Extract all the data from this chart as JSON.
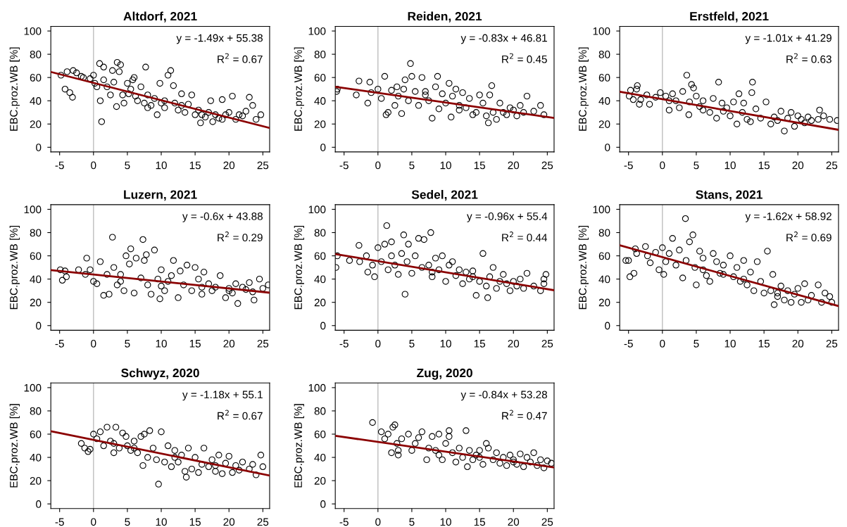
{
  "chart_data": [
    {
      "type": "scatter",
      "title": "Altdorf, 2021",
      "ylabel": "EBC.proz.WB [%]",
      "xlim": [
        -6.3,
        26
      ],
      "ylim": [
        -4,
        104
      ],
      "xticks": [
        -5,
        0,
        5,
        10,
        15,
        20,
        25
      ],
      "yticks": [
        0,
        20,
        40,
        60,
        80,
        100
      ],
      "grid": false,
      "annotations": [
        "y = -1.49x + 55.38",
        "R$^{2}$ = 0.67"
      ],
      "ref_lines": [
        {
          "axis": "x",
          "value": 0,
          "color": "#bebebe"
        }
      ],
      "series": [
        {
          "color": "#000000",
          "marker": "circle",
          "x": [
            -4.8,
            -4.2,
            -3.9,
            -3.5,
            -3.1,
            -3,
            -2.5,
            -1.8,
            -1.5,
            -0.5,
            0,
            0.2,
            0.5,
            0.9,
            1,
            1.2,
            1.5,
            1.5,
            2,
            2.5,
            2.8,
            3,
            3.4,
            3.5,
            3.8,
            4,
            4.3,
            4.5,
            5,
            5.5,
            5.8,
            6.2,
            6.5,
            7,
            7.5,
            7.7,
            8,
            8.5,
            9,
            9.4,
            9.8,
            10,
            10.5,
            11,
            11.4,
            11.8,
            12,
            12.5,
            13,
            13.5,
            14,
            14.5,
            15,
            15.5,
            15.8,
            16.5,
            17,
            17.3,
            17.6,
            18,
            18.5,
            19,
            19.5,
            20,
            20.5,
            21,
            21.5,
            22,
            23,
            23.5,
            24,
            24.7,
            22.5,
            6,
            5.2,
            8,
            10.5,
            16,
            19,
            13
          ],
          "values": [
            62,
            50,
            65,
            47,
            43,
            66,
            64,
            61,
            60,
            59,
            62,
            55,
            52,
            72,
            40,
            22,
            69,
            58,
            52,
            45,
            66,
            56,
            35,
            73,
            65,
            71,
            45,
            38,
            55,
            50,
            58,
            44,
            40,
            52,
            38,
            69,
            45,
            36,
            42,
            28,
            55,
            38,
            34,
            62,
            66,
            53,
            38,
            32,
            46,
            30,
            37,
            45,
            28,
            32,
            21,
            26,
            30,
            40,
            22,
            28,
            25,
            41,
            28,
            30,
            44,
            24,
            28,
            27,
            43,
            36,
            24,
            28,
            31,
            60,
            46,
            34,
            40,
            28,
            24,
            36
          ]
        },
        {
          "type": "line",
          "color": "#8b0000",
          "x": [
            -6.3,
            26
          ],
          "values": [
            64.8,
            16.6
          ]
        }
      ]
    },
    {
      "type": "scatter",
      "title": "Reiden, 2021",
      "ylabel": "EBC.proz.WB [%]",
      "xlim": [
        -6.3,
        26
      ],
      "ylim": [
        -4,
        104
      ],
      "xticks": [
        -5,
        0,
        5,
        10,
        15,
        20,
        25
      ],
      "yticks": [
        0,
        20,
        40,
        60,
        80,
        100
      ],
      "grid": false,
      "annotations": [
        "y = -0.83x + 46.81",
        "R$^{2}$ = 0.45"
      ],
      "ref_lines": [
        {
          "axis": "x",
          "value": 0,
          "color": "#bebebe"
        }
      ],
      "series": [
        {
          "color": "#000000",
          "marker": "circle",
          "x": [
            -6.1,
            -6,
            -3.2,
            -2.8,
            -1.5,
            -1.2,
            -1,
            0,
            0.5,
            1,
            1.2,
            1.5,
            2,
            2.5,
            3,
            3.5,
            3.8,
            4,
            4.5,
            4.8,
            5,
            5.5,
            6,
            6.5,
            7,
            7.5,
            8,
            8.5,
            8.8,
            9,
            9.5,
            10,
            10.5,
            10.8,
            11,
            11.5,
            12,
            12.5,
            13,
            13.5,
            14,
            14.5,
            15,
            15.5,
            16,
            16.3,
            16.5,
            16.8,
            17,
            17.5,
            18,
            18.5,
            19,
            19.5,
            20,
            20.5,
            21,
            21.5,
            22,
            23,
            24,
            24.5,
            2.8,
            7,
            12
          ],
          "values": [
            48,
            50,
            45,
            57,
            38,
            56,
            47,
            50,
            42,
            61,
            28,
            30,
            49,
            36,
            44,
            29,
            50,
            58,
            40,
            72,
            61,
            48,
            36,
            60,
            45,
            40,
            25,
            52,
            61,
            33,
            46,
            38,
            55,
            26,
            44,
            50,
            32,
            47,
            34,
            42,
            28,
            30,
            45,
            38,
            27,
            21,
            45,
            53,
            30,
            24,
            38,
            30,
            28,
            34,
            32,
            27,
            36,
            30,
            44,
            31,
            36,
            28,
            52,
            48,
            36
          ]
        },
        {
          "type": "line",
          "color": "#8b0000",
          "x": [
            -6.3,
            26
          ],
          "values": [
            52,
            25.2
          ]
        }
      ]
    },
    {
      "type": "scatter",
      "title": "Erstfeld, 2021",
      "ylabel": "EBC.proz.WB [%]",
      "xlim": [
        -6.3,
        26
      ],
      "ylim": [
        -4,
        104
      ],
      "xticks": [
        -5,
        0,
        5,
        10,
        15,
        20,
        25
      ],
      "yticks": [
        0,
        20,
        40,
        60,
        80,
        100
      ],
      "grid": false,
      "annotations": [
        "y = -1.01x + 41.29",
        "R$^{2}$ = 0.63"
      ],
      "ref_lines": [
        {
          "axis": "x",
          "value": 0,
          "color": "#bebebe"
        }
      ],
      "series": [
        {
          "color": "#000000",
          "marker": "circle",
          "x": [
            -4.9,
            -4.7,
            -4.3,
            -3.8,
            -3.7,
            -3.4,
            -3.2,
            -2.3,
            -1.9,
            -1,
            -0.3,
            0.5,
            1,
            1.5,
            2,
            2.5,
            3,
            3.6,
            3.9,
            4,
            4.3,
            4.6,
            5,
            5.5,
            6,
            7,
            7.5,
            8,
            8.3,
            8.8,
            9.5,
            10,
            10.5,
            11,
            11.3,
            11.8,
            12,
            12.5,
            13,
            13.2,
            13.3,
            13.8,
            14.5,
            15.3,
            16,
            16.5,
            17,
            17.5,
            18,
            18.5,
            19,
            19.5,
            20,
            20.5,
            21,
            21.5,
            22,
            23,
            23.2,
            23.8,
            24.7,
            25.8,
            9,
            1,
            6
          ],
          "values": [
            44,
            49,
            41,
            50,
            53,
            37,
            41,
            45,
            37,
            43,
            47,
            44,
            32,
            46,
            40,
            34,
            48,
            62,
            28,
            39,
            54,
            51,
            44,
            35,
            40,
            30,
            42,
            25,
            56,
            38,
            34,
            27,
            39,
            20,
            46,
            30,
            38,
            24,
            22,
            47,
            56,
            33,
            25,
            39,
            20,
            26,
            23,
            31,
            14,
            25,
            30,
            18,
            27,
            24,
            21,
            26,
            23,
            24,
            32,
            27,
            24,
            23,
            31,
            40,
            32
          ]
        },
        {
          "type": "line",
          "color": "#8b0000",
          "x": [
            -6.3,
            26
          ],
          "values": [
            47.7,
            15
          ]
        }
      ]
    },
    {
      "type": "scatter",
      "title": "Luzern, 2021",
      "ylabel": "EBC.proz.WB [%]",
      "xlim": [
        -6.3,
        26
      ],
      "ylim": [
        -4,
        104
      ],
      "xticks": [
        -5,
        0,
        5,
        10,
        15,
        20,
        25
      ],
      "yticks": [
        0,
        20,
        40,
        60,
        80,
        100
      ],
      "grid": false,
      "annotations": [
        "y = -0.6x + 43.88",
        "R$^{2}$ = 0.29"
      ],
      "ref_lines": [
        {
          "axis": "x",
          "value": 0,
          "color": "#bebebe"
        }
      ],
      "series": [
        {
          "color": "#000000",
          "marker": "circle",
          "x": [
            -4.9,
            -4.6,
            -4.2,
            -4,
            -2.2,
            -1.2,
            -1,
            -0.5,
            0,
            0.5,
            1,
            1.5,
            2,
            2.3,
            2.8,
            3,
            3.5,
            4,
            4.5,
            4.8,
            5.3,
            5.5,
            6,
            6.3,
            7,
            7.3,
            7.5,
            7.8,
            8,
            8.5,
            9,
            9.5,
            9.8,
            10,
            10.5,
            11,
            11.5,
            11.8,
            12.5,
            12.8,
            13.3,
            13.8,
            14.5,
            15,
            15.5,
            16,
            16.3,
            17,
            17.5,
            18,
            18.7,
            19.5,
            20,
            20.5,
            21,
            21.3,
            22,
            22.5,
            23,
            23.5,
            23.7,
            24.5,
            25,
            25.8,
            4,
            10,
            16,
            20
          ],
          "values": [
            48,
            39,
            47,
            42,
            48,
            44,
            58,
            48,
            38,
            36,
            55,
            26,
            44,
            27,
            76,
            50,
            35,
            44,
            30,
            60,
            53,
            66,
            28,
            58,
            41,
            74,
            56,
            61,
            35,
            27,
            65,
            40,
            23,
            48,
            30,
            38,
            43,
            56,
            24,
            47,
            35,
            52,
            30,
            50,
            40,
            27,
            46,
            36,
            30,
            33,
            43,
            24,
            32,
            28,
            36,
            19,
            33,
            31,
            37,
            29,
            22,
            40,
            32,
            35,
            38,
            34,
            33,
            30
          ]
        },
        {
          "type": "line",
          "color": "#8b0000",
          "x": [
            -6.3,
            26
          ],
          "values": [
            47.7,
            28.3
          ]
        }
      ]
    },
    {
      "type": "scatter",
      "title": "Sedel, 2021",
      "ylabel": "EBC.proz.WB [%]",
      "xlim": [
        -6.3,
        26
      ],
      "ylim": [
        -4,
        104
      ],
      "xticks": [
        -5,
        0,
        5,
        10,
        15,
        20,
        25
      ],
      "yticks": [
        0,
        20,
        40,
        60,
        80,
        100
      ],
      "grid": false,
      "annotations": [
        "y = -0.96x + 55.4",
        "R$^{2}$ = 0.44"
      ],
      "ref_lines": [
        {
          "axis": "x",
          "value": 0,
          "color": "#bebebe"
        }
      ],
      "series": [
        {
          "color": "#000000",
          "marker": "circle",
          "x": [
            -6.2,
            -6,
            -4.2,
            -2.8,
            -2.7,
            -1.7,
            -1.5,
            -0.8,
            -0.5,
            0,
            0.5,
            1,
            1.3,
            1.5,
            2,
            2.5,
            3,
            3.5,
            3.8,
            4,
            4.3,
            4.5,
            5,
            5.5,
            6,
            6.5,
            6.8,
            7.5,
            7.8,
            8,
            8.5,
            9,
            9.5,
            10,
            10.5,
            11,
            11.5,
            12,
            12.5,
            13,
            13.5,
            14,
            14.5,
            15,
            15.5,
            16,
            16.2,
            16.5,
            17,
            17.5,
            18,
            18.5,
            19,
            19.5,
            20,
            20.5,
            21,
            21.5,
            22,
            23,
            24,
            24.5,
            24.8,
            24.5,
            2,
            8,
            14
          ],
          "values": [
            50,
            60,
            56,
            69,
            55,
            60,
            46,
            52,
            42,
            67,
            55,
            70,
            86,
            48,
            72,
            52,
            44,
            62,
            78,
            27,
            55,
            70,
            45,
            60,
            75,
            50,
            74,
            52,
            80,
            42,
            58,
            48,
            60,
            38,
            52,
            55,
            43,
            48,
            36,
            46,
            40,
            47,
            26,
            38,
            62,
            34,
            24,
            42,
            50,
            32,
            38,
            44,
            36,
            30,
            38,
            34,
            40,
            32,
            45,
            34,
            30,
            40,
            44,
            36,
            60,
            46,
            42
          ]
        },
        {
          "type": "line",
          "color": "#8b0000",
          "x": [
            -6.3,
            26
          ],
          "values": [
            61.5,
            30.4
          ]
        }
      ]
    },
    {
      "type": "scatter",
      "title": "Stans, 2021",
      "ylabel": "EBC.proz.WB [%]",
      "xlim": [
        -6.3,
        26
      ],
      "ylim": [
        -4,
        104
      ],
      "xticks": [
        -5,
        0,
        5,
        10,
        15,
        20,
        25
      ],
      "yticks": [
        0,
        20,
        40,
        60,
        80,
        100
      ],
      "grid": false,
      "annotations": [
        "y = -1.62x + 58.92",
        "R$^{2}$ = 0.69"
      ],
      "ref_lines": [
        {
          "axis": "x",
          "value": 0,
          "color": "#bebebe"
        }
      ],
      "series": [
        {
          "color": "#000000",
          "marker": "circle",
          "x": [
            -5.4,
            -5,
            -4.8,
            -4.2,
            -4,
            -3.8,
            -2.5,
            -2.2,
            -1.8,
            -1,
            -0.5,
            0,
            0.2,
            0.5,
            1,
            1.5,
            2,
            2.5,
            3,
            3.4,
            3.5,
            4,
            4.5,
            4.8,
            5,
            5.5,
            6,
            6.5,
            7,
            7.5,
            8,
            8.5,
            9,
            10,
            10.5,
            11,
            11.5,
            12,
            12.5,
            13,
            13.5,
            14,
            14.5,
            15,
            15.5,
            16,
            16.3,
            16.5,
            17,
            17.5,
            18,
            18.5,
            19,
            19.5,
            20,
            20.5,
            21,
            21.5,
            22,
            23,
            23.5,
            24,
            24.7,
            25,
            6,
            9,
            12,
            17
          ],
          "values": [
            56,
            56,
            42,
            45,
            66,
            62,
            68,
            60,
            54,
            63,
            48,
            67,
            44,
            55,
            62,
            75,
            52,
            65,
            41,
            92,
            56,
            72,
            78,
            50,
            35,
            64,
            58,
            43,
            38,
            62,
            55,
            45,
            52,
            60,
            42,
            50,
            38,
            56,
            35,
            46,
            30,
            55,
            38,
            28,
            64,
            30,
            44,
            18,
            25,
            34,
            22,
            30,
            20,
            27,
            32,
            20,
            36,
            22,
            26,
            35,
            20,
            28,
            25,
            20,
            48,
            44,
            40,
            28
          ]
        },
        {
          "type": "line",
          "color": "#8b0000",
          "x": [
            -6.3,
            26
          ],
          "values": [
            69.1,
            16.8
          ]
        }
      ]
    },
    {
      "type": "scatter",
      "title": "Schwyz, 2020",
      "ylabel": "EBC.proz.WB [%]",
      "xlim": [
        -6.3,
        26
      ],
      "ylim": [
        -4,
        104
      ],
      "xticks": [
        -5,
        0,
        5,
        10,
        15,
        20,
        25
      ],
      "yticks": [
        0,
        20,
        40,
        60,
        80,
        100
      ],
      "grid": false,
      "annotations": [
        "y = -1.18x + 55.1",
        "R$^{2}$ = 0.67"
      ],
      "ref_lines": [
        {
          "axis": "x",
          "value": 0,
          "color": "#bebebe"
        }
      ],
      "series": [
        {
          "color": "#000000",
          "marker": "circle",
          "x": [
            -1.8,
            -1.3,
            -0.8,
            -0.5,
            0,
            0.5,
            1,
            1.5,
            2,
            2.5,
            3,
            3.3,
            3.8,
            4.3,
            4.8,
            5,
            5.5,
            6,
            6.5,
            7,
            7.3,
            7.5,
            8,
            8.3,
            8.8,
            9.3,
            9.6,
            10,
            10.5,
            11,
            11.5,
            12,
            12.5,
            13,
            13.5,
            13.7,
            14,
            14.5,
            15,
            15.5,
            16,
            16.3,
            17,
            17.5,
            18,
            18.5,
            19,
            19.5,
            20,
            20.5,
            21,
            21.5,
            22,
            23,
            23.5,
            24,
            24.7,
            25,
            3,
            6,
            12,
            18
          ],
          "values": [
            52,
            48,
            45,
            47,
            60,
            56,
            62,
            50,
            66,
            54,
            44,
            66,
            48,
            61,
            58,
            50,
            46,
            54,
            44,
            58,
            33,
            60,
            40,
            63,
            48,
            38,
            17,
            62,
            36,
            50,
            32,
            46,
            36,
            42,
            28,
            23,
            48,
            30,
            40,
            27,
            34,
            48,
            32,
            38,
            28,
            42,
            26,
            35,
            41,
            27,
            33,
            29,
            36,
            30,
            34,
            25,
            42,
            32,
            52,
            48,
            40,
            33
          ]
        },
        {
          "type": "line",
          "color": "#8b0000",
          "x": [
            -6.3,
            26
          ],
          "values": [
            62.5,
            24.4
          ]
        }
      ]
    },
    {
      "type": "scatter",
      "title": "Zug, 2020",
      "ylabel": "EBC.proz.WB [%]",
      "xlim": [
        -6.3,
        26
      ],
      "ylim": [
        -4,
        104
      ],
      "xticks": [
        -5,
        0,
        5,
        10,
        15,
        20,
        25
      ],
      "yticks": [
        0,
        20,
        40,
        60,
        80,
        100
      ],
      "grid": false,
      "annotations": [
        "y = -0.84x + 53.28",
        "R$^{2}$ = 0.47"
      ],
      "ref_lines": [
        {
          "axis": "x",
          "value": 0,
          "color": "#bebebe"
        }
      ],
      "series": [
        {
          "color": "#000000",
          "marker": "circle",
          "x": [
            -0.8,
            0.5,
            1,
            1.5,
            2,
            2.2,
            2.5,
            2.8,
            3,
            3.5,
            4.5,
            5,
            5.5,
            6,
            6.5,
            7.2,
            7.5,
            8,
            8.5,
            9,
            9.5,
            10,
            10.5,
            10.5,
            11,
            11.5,
            12,
            12.5,
            13,
            13.2,
            13.5,
            14,
            14.5,
            15,
            15.5,
            16,
            16.3,
            17,
            17.5,
            18,
            18.5,
            19,
            19.5,
            20,
            20.5,
            21,
            21.5,
            22,
            22.5,
            23,
            23.5,
            24,
            24.5,
            25,
            25.6,
            3,
            9,
            15,
            20
          ],
          "values": [
            70,
            62,
            56,
            60,
            44,
            66,
            68,
            52,
            42,
            56,
            60,
            46,
            52,
            57,
            62,
            38,
            48,
            58,
            46,
            60,
            38,
            52,
            63,
            58,
            44,
            36,
            48,
            40,
            63,
            32,
            46,
            38,
            42,
            46,
            34,
            52,
            48,
            38,
            44,
            35,
            40,
            33,
            42,
            38,
            34,
            43,
            32,
            40,
            36,
            44,
            33,
            38,
            31,
            37,
            35,
            46,
            42,
            40,
            36
          ]
        },
        {
          "type": "line",
          "color": "#8b0000",
          "x": [
            -6.3,
            26
          ],
          "values": [
            58.6,
            31.4
          ]
        }
      ]
    }
  ]
}
